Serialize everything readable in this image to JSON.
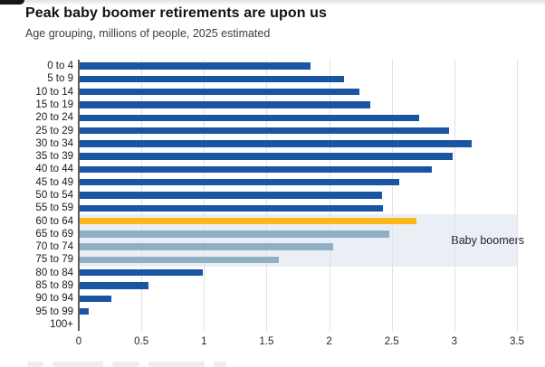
{
  "chart_data": {
    "type": "bar",
    "orientation": "horizontal",
    "title": "Peak baby boomer retirements are upon us",
    "subtitle": "Age grouping, millions of people, 2025 estimated",
    "categories": [
      "0 to 4",
      "5 to 9",
      "10 to 14",
      "15 to 19",
      "20 to 24",
      "25 to 29",
      "30 to 34",
      "35 to 39",
      "40 to 44",
      "45 to 49",
      "50 to 54",
      "55 to 59",
      "60 to 64",
      "65 to 69",
      "70 to 74",
      "75 to 79",
      "80 to 84",
      "85 to 89",
      "90 to 94",
      "95 to 99",
      "100+"
    ],
    "values": [
      1.85,
      2.12,
      2.24,
      2.33,
      2.72,
      2.96,
      3.14,
      2.99,
      2.82,
      2.56,
      2.42,
      2.43,
      2.7,
      2.48,
      2.03,
      1.6,
      0.99,
      0.56,
      0.26,
      0.08,
      0
    ],
    "xlim": [
      0,
      3.5
    ],
    "xtick_labels": [
      "0",
      "0.5",
      "1",
      "1.5",
      "2",
      "2.5",
      "3",
      "3.5"
    ],
    "grid": "vertical-light",
    "annotation": {
      "label": "Baby boomers",
      "from_category": "60 to 64",
      "to_category": "75 to 79"
    },
    "colors": {
      "bar_default": "#1a55a4",
      "bar_highlight_gold": "#fcb81d",
      "bar_boomer_light": "#8fb0c3",
      "band_fill": "#eaeff6",
      "gridline": "#e1e1e1",
      "axis_line": "#5f5f5f"
    },
    "bar_color_keys": [
      "bar_default",
      "bar_default",
      "bar_default",
      "bar_default",
      "bar_default",
      "bar_default",
      "bar_default",
      "bar_default",
      "bar_default",
      "bar_default",
      "bar_default",
      "bar_default",
      "bar_highlight_gold",
      "bar_boomer_light",
      "bar_boomer_light",
      "bar_boomer_light",
      "bar_default",
      "bar_default",
      "bar_default",
      "bar_default",
      "bar_default"
    ]
  }
}
